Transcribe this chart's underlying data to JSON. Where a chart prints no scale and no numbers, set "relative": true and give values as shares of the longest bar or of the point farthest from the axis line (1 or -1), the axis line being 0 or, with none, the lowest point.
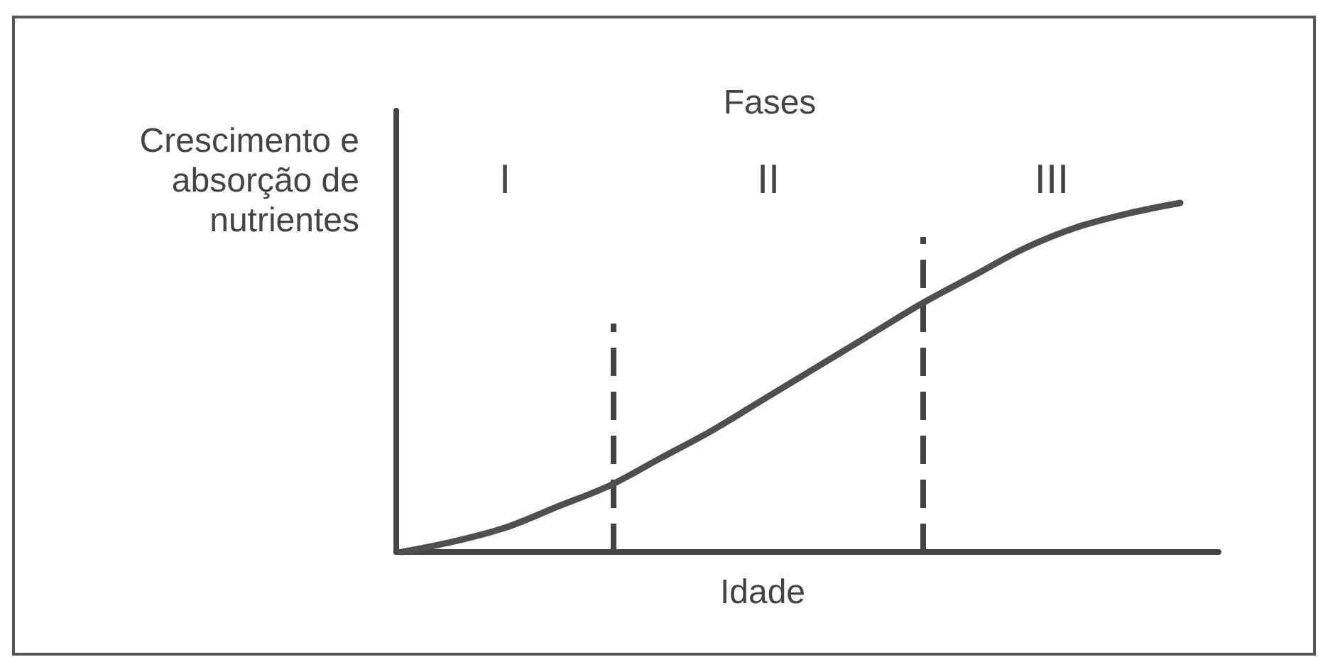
{
  "chart_data": {
    "type": "line",
    "title": "Fases",
    "xlabel": "Idade",
    "ylabel": "Crescimento e absorção de nutrientes",
    "categories": [
      null,
      null,
      null,
      null,
      null,
      null,
      null,
      null,
      null,
      null,
      null,
      null,
      null,
      null,
      null,
      null
    ],
    "series": [
      {
        "color": "#4f4f4f",
        "values": [
          0,
          0.03,
          0.07,
          0.13,
          0.19,
          0.27,
          0.35,
          0.44,
          0.53,
          0.62,
          0.71,
          0.79,
          0.87,
          0.93,
          0.97,
          1
        ]
      }
    ],
    "relative": true,
    "annotations": [
      "I",
      "II",
      "III"
    ]
  }
}
